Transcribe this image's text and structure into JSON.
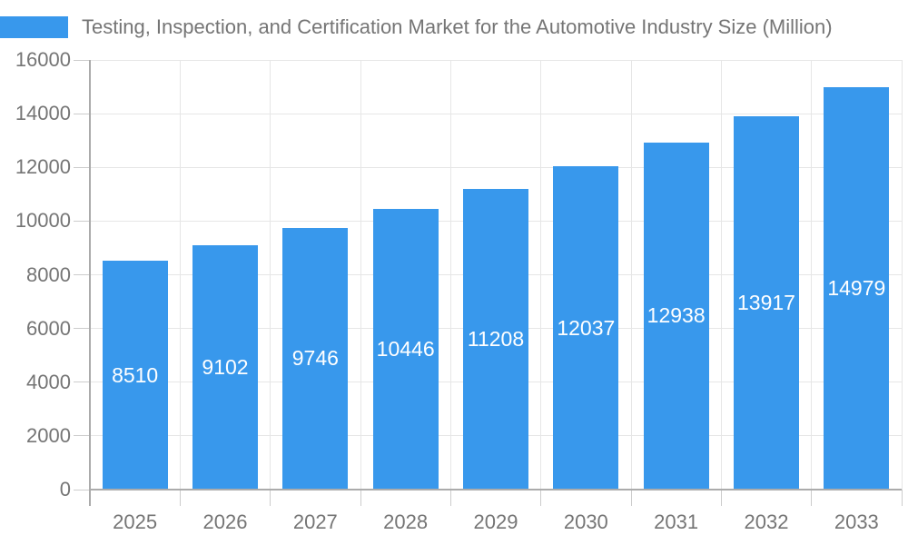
{
  "chart_data": {
    "type": "bar",
    "title": "Testing, Inspection, and Certification Market for the Automotive Industry Size (Million)",
    "series_name": "Testing, Inspection, and Certification Market for the Automotive Industry Size (Million)",
    "categories": [
      "2025",
      "2026",
      "2027",
      "2028",
      "2029",
      "2030",
      "2031",
      "2032",
      "2033"
    ],
    "values": [
      8510,
      9102,
      9746,
      10446,
      11208,
      12037,
      12938,
      13917,
      14979
    ],
    "xlabel": "",
    "ylabel": "",
    "ylim": [
      0,
      16000
    ],
    "yticks": [
      0,
      2000,
      4000,
      6000,
      8000,
      10000,
      12000,
      14000,
      16000
    ],
    "grid": "both",
    "legend_position": "top-left",
    "value_labels": "inside-center"
  },
  "chart_style": {
    "bar_color": "#3898EC",
    "grid_color": "#e6e6e6",
    "axis_line_color": "#ababab",
    "tick_color": "#cccccc",
    "text_color": "#757575",
    "value_label_color": "#ffffff",
    "background": "#ffffff"
  }
}
